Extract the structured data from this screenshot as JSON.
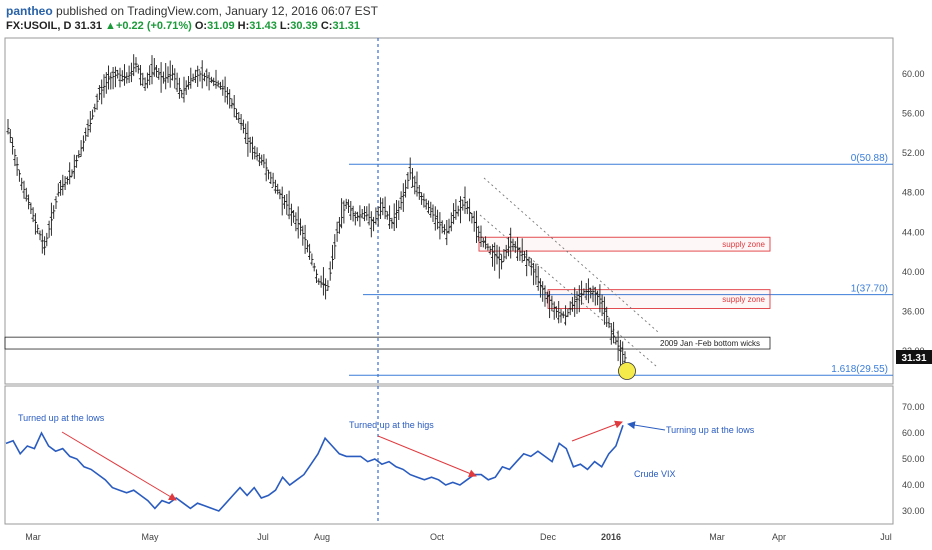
{
  "header": {
    "author": "pantheo",
    "published": "published on TradingView.com, January 12, 2016 06:07 EST",
    "symbol": "FX:USOIL, D",
    "last": "31.31",
    "change_arrow": "▲",
    "change": "+0.22 (+0.71%)",
    "open_label": "O:",
    "open": "31.09",
    "high_label": "H:",
    "high": "31.43",
    "low_label": "L:",
    "low": "30.39",
    "close_label": "C:",
    "close": "31.31"
  },
  "chart_data": [
    {
      "type": "candlestick",
      "title": "",
      "ylim": [
        28.5,
        64.5
      ],
      "y_ticks": [
        60,
        56,
        52,
        48,
        44,
        40,
        36,
        32
      ],
      "y_tick_labels": [
        "60.00",
        "56.00",
        "52.00",
        "48.00",
        "44.00",
        "40.00",
        "36.00",
        "32.00"
      ],
      "last_price_label": "31.31",
      "x_labels": [
        "Mar",
        "May",
        "Jul",
        "Aug",
        "Oct",
        "Dec",
        "2016",
        "Mar",
        "Apr",
        "Jul"
      ],
      "close_path": [
        [
          0,
          54.5
        ],
        [
          3,
          49
        ],
        [
          6,
          45
        ],
        [
          8,
          42.5
        ],
        [
          11,
          48
        ],
        [
          14,
          50
        ],
        [
          18,
          55
        ],
        [
          20,
          58
        ],
        [
          22,
          59.5
        ],
        [
          24,
          60
        ],
        [
          26,
          59.5
        ],
        [
          28,
          61
        ],
        [
          30,
          59
        ],
        [
          32,
          60.5
        ],
        [
          34,
          59.5
        ],
        [
          36,
          60
        ],
        [
          38,
          58
        ],
        [
          40,
          59.5
        ],
        [
          42,
          60
        ],
        [
          44,
          59.5
        ],
        [
          46,
          59
        ],
        [
          48,
          58
        ],
        [
          50,
          56
        ],
        [
          52,
          54
        ],
        [
          54,
          52
        ],
        [
          56,
          51
        ],
        [
          58,
          49
        ],
        [
          60,
          47.5
        ],
        [
          62,
          46
        ],
        [
          64,
          44.5
        ],
        [
          66,
          42
        ],
        [
          68,
          39
        ],
        [
          70,
          38.5
        ],
        [
          72,
          44
        ],
        [
          74,
          47
        ],
        [
          76,
          45.5
        ],
        [
          78,
          46
        ],
        [
          80,
          45
        ],
        [
          82,
          46.5
        ],
        [
          84,
          45
        ],
        [
          86,
          47
        ],
        [
          88,
          50
        ],
        [
          90,
          48
        ],
        [
          92,
          46.5
        ],
        [
          94,
          45
        ],
        [
          96,
          44
        ],
        [
          98,
          46
        ],
        [
          100,
          47
        ],
        [
          102,
          45
        ],
        [
          104,
          43
        ],
        [
          106,
          42
        ],
        [
          108,
          41
        ],
        [
          110,
          43
        ],
        [
          112,
          42
        ],
        [
          114,
          41
        ],
        [
          116,
          39
        ],
        [
          118,
          37.5
        ],
        [
          120,
          36
        ],
        [
          122,
          35.5
        ],
        [
          124,
          37
        ],
        [
          126,
          38
        ],
        [
          128,
          38
        ],
        [
          130,
          37
        ],
        [
          132,
          34
        ],
        [
          134,
          32
        ],
        [
          135,
          31.3
        ]
      ],
      "annotations": {
        "fib_0": "0(50.88)",
        "fib_1": "1(37.70)",
        "fib_1618": "1.618(29.55)",
        "fib_levels": [
          50.88,
          37.7,
          29.55
        ],
        "supply_zone_label": "supply zone",
        "supply_zones": [
          [
            42.1,
            43.5
          ],
          [
            36.3,
            38.2
          ]
        ],
        "wick_zone_label": "2009 Jan -Feb bottom wicks",
        "wick_zone": [
          32.2,
          33.4
        ]
      }
    },
    {
      "type": "line",
      "series": [
        {
          "name": "Crude VIX",
          "values": [
            [
              0,
              56
            ],
            [
              2,
              57
            ],
            [
              4,
              52
            ],
            [
              6,
              55
            ],
            [
              8,
              54
            ],
            [
              10,
              60
            ],
            [
              12,
              55
            ],
            [
              14,
              53
            ],
            [
              16,
              54
            ],
            [
              18,
              51
            ],
            [
              20,
              50
            ],
            [
              22,
              47
            ],
            [
              24,
              46
            ],
            [
              26,
              44
            ],
            [
              28,
              42
            ],
            [
              30,
              39
            ],
            [
              32,
              38
            ],
            [
              34,
              37
            ],
            [
              36,
              38
            ],
            [
              38,
              36
            ],
            [
              40,
              34
            ],
            [
              42,
              31
            ],
            [
              44,
              34
            ],
            [
              46,
              33
            ],
            [
              48,
              35
            ],
            [
              50,
              33
            ],
            [
              52,
              31
            ],
            [
              54,
              33
            ],
            [
              56,
              32
            ],
            [
              58,
              31
            ],
            [
              60,
              30
            ],
            [
              62,
              33
            ],
            [
              64,
              36
            ],
            [
              66,
              39
            ],
            [
              68,
              36
            ],
            [
              70,
              39
            ],
            [
              72,
              35
            ],
            [
              74,
              36
            ],
            [
              76,
              38
            ],
            [
              78,
              43
            ],
            [
              80,
              40
            ],
            [
              82,
              42
            ],
            [
              84,
              44
            ],
            [
              86,
              48
            ],
            [
              88,
              52
            ],
            [
              90,
              58
            ],
            [
              92,
              55
            ],
            [
              94,
              52
            ],
            [
              96,
              51
            ],
            [
              98,
              51
            ],
            [
              100,
              51
            ],
            [
              102,
              49
            ],
            [
              104,
              50
            ],
            [
              106,
              48
            ],
            [
              108,
              49
            ],
            [
              110,
              47
            ],
            [
              112,
              46
            ],
            [
              114,
              44
            ],
            [
              116,
              43
            ],
            [
              118,
              42
            ],
            [
              120,
              43
            ],
            [
              122,
              42
            ],
            [
              124,
              40
            ],
            [
              126,
              41
            ],
            [
              128,
              40
            ],
            [
              130,
              42
            ],
            [
              132,
              44
            ],
            [
              134,
              44
            ],
            [
              136,
              42
            ],
            [
              138,
              43
            ],
            [
              140,
              47
            ],
            [
              142,
              46
            ],
            [
              144,
              49
            ],
            [
              146,
              52
            ],
            [
              148,
              51
            ],
            [
              150,
              53
            ],
            [
              152,
              51
            ],
            [
              154,
              49
            ],
            [
              156,
              56
            ],
            [
              158,
              54
            ],
            [
              160,
              47
            ],
            [
              162,
              48
            ],
            [
              164,
              46
            ],
            [
              166,
              49
            ],
            [
              168,
              47
            ],
            [
              170,
              52
            ],
            [
              172,
              55
            ],
            [
              174,
              63
            ]
          ]
        }
      ],
      "ylim": [
        27,
        75
      ],
      "y_ticks": [
        70,
        60,
        50,
        40,
        30
      ],
      "y_tick_labels": [
        "70.00",
        "60.00",
        "50.00",
        "40.00",
        "30.00"
      ],
      "annotations": [
        "Turned up at the lows",
        "Turned up at the higs",
        "Turning up at the lows",
        "Crude VIX"
      ]
    }
  ],
  "colors": {
    "candle": "#1a1a1a",
    "fib": "#3b7dd8",
    "supply": "#e0393e",
    "vix": "#2a5cc0",
    "arrow_red": "#e0393e",
    "arrow_blue": "#2a5cc0",
    "price_tag_bg": "#111111"
  }
}
